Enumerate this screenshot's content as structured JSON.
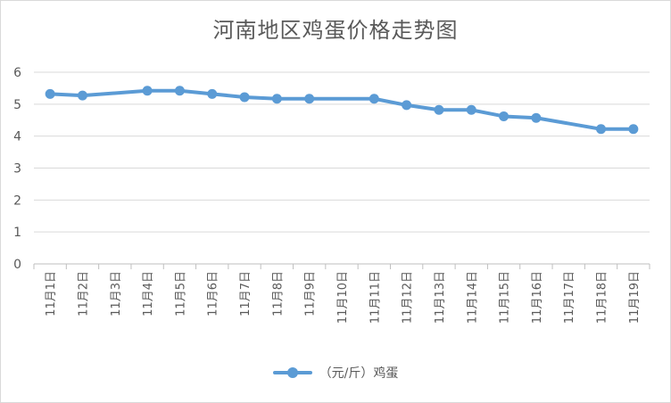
{
  "chart_data": {
    "type": "line",
    "title": "河南地区鸡蛋价格走势图",
    "categories": [
      "11月1日",
      "11月2日",
      "11月3日",
      "11月4日",
      "11月5日",
      "11月6日",
      "11月7日",
      "11月8日",
      "11月9日",
      "11月10日",
      "11月11日",
      "11月12日",
      "11月13日",
      "11月14日",
      "11月15日",
      "11月16日",
      "11月17日",
      "11月18日",
      "11月19日"
    ],
    "series": [
      {
        "name": "（元/斤）鸡蛋",
        "values": [
          5.32,
          5.27,
          null,
          5.42,
          5.42,
          5.32,
          5.22,
          5.17,
          5.17,
          null,
          5.17,
          4.97,
          4.82,
          4.82,
          4.62,
          4.57,
          null,
          4.22,
          4.22
        ]
      }
    ],
    "ylim": [
      0,
      6
    ],
    "yticks": [
      "0",
      "1",
      "2",
      "3",
      "4",
      "5",
      "6"
    ],
    "xlabel": "",
    "ylabel": "",
    "grid": true,
    "legend": "bottom",
    "color": "#5b9bd5"
  }
}
